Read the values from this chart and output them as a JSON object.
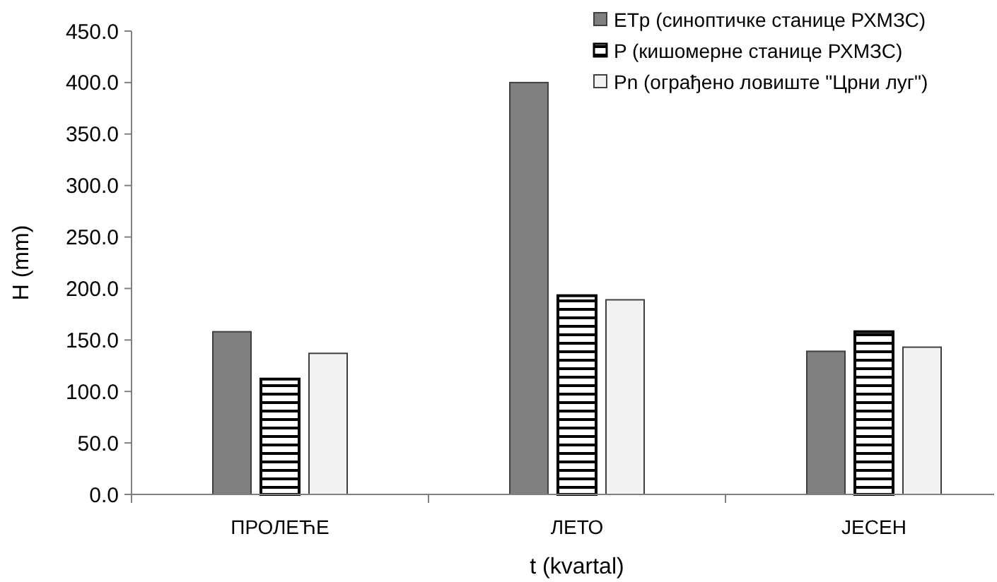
{
  "chart_data": {
    "type": "bar",
    "xlabel": "t (kvartal)",
    "ylabel": "H (mm)",
    "categories": [
      "ПРОЛЕЋЕ",
      "ЛЕТО",
      "ЈЕСЕН"
    ],
    "series": [
      {
        "name": "ETp (синоптичке станице РХМЗС)",
        "color": "#808080",
        "values": [
          158,
          400,
          139
        ]
      },
      {
        "name": "P (кишомерне станице РХМЗС)",
        "color": "#000000",
        "values": [
          112,
          193,
          158
        ]
      },
      {
        "name": "Pn (ограђено ловиште \"Црни луг\")",
        "color": "#f2f2f2",
        "values": [
          137,
          189,
          143
        ]
      }
    ],
    "ylim": [
      0,
      450
    ],
    "yticks": [
      {
        "value": 0,
        "label": "0.0"
      },
      {
        "value": 50,
        "label": "50.0"
      },
      {
        "value": 100,
        "label": "100.0"
      },
      {
        "value": 150,
        "label": "150.0"
      },
      {
        "value": 200,
        "label": "200.0"
      },
      {
        "value": 250,
        "label": "250.0"
      },
      {
        "value": 300,
        "label": "300.0"
      },
      {
        "value": 350,
        "label": "350.0"
      },
      {
        "value": 400,
        "label": "400.0"
      },
      {
        "value": 450,
        "label": "450.0"
      }
    ],
    "grid": false,
    "legend": "top right"
  }
}
